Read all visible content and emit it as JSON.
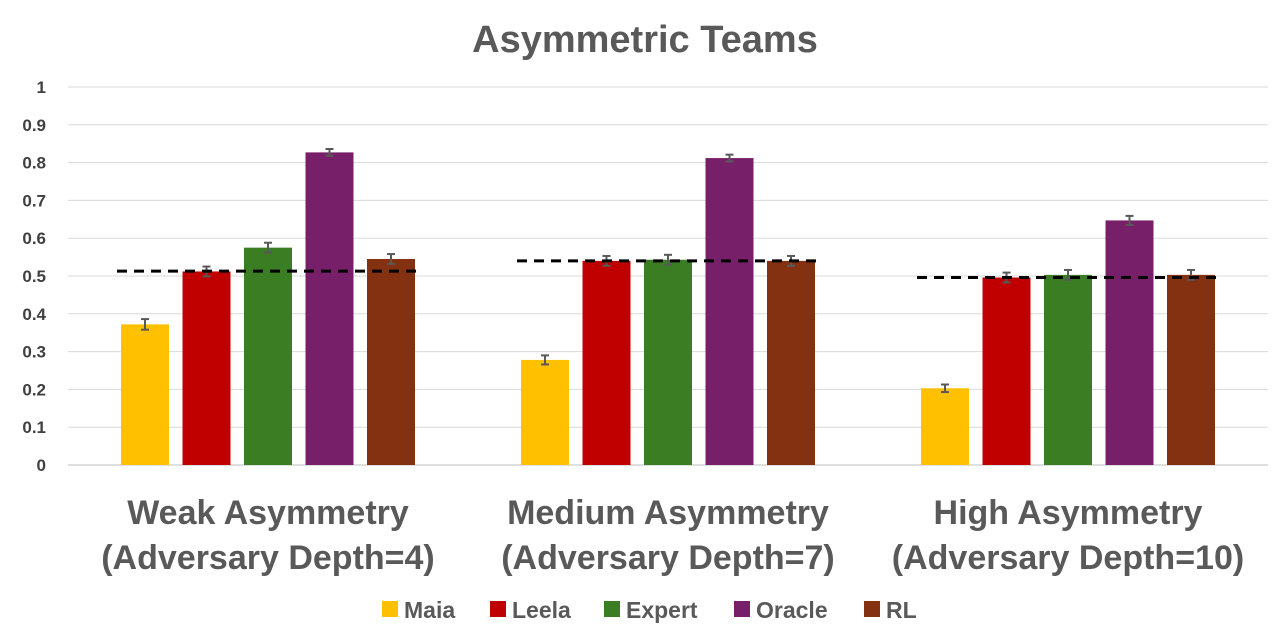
{
  "chart_data": {
    "type": "bar",
    "title": "Asymmetric Teams",
    "ylim": [
      0,
      1
    ],
    "yticks": [
      0,
      0.1,
      0.2,
      0.3,
      0.4,
      0.5,
      0.6,
      0.7,
      0.8,
      0.9,
      1
    ],
    "ytick_labels": [
      "0",
      "0.1",
      "0.2",
      "0.3",
      "0.4",
      "0.5",
      "0.6",
      "0.7",
      "0.8",
      "0.9",
      "1"
    ],
    "grid": true,
    "legend_position": "bottom",
    "categories": [
      {
        "line1": "Weak Asymmetry",
        "line2": "(Adversary Depth=4)"
      },
      {
        "line1": "Medium Asymmetry",
        "line2": "(Adversary Depth=7)"
      },
      {
        "line1": "High Asymmetry",
        "line2": "(Adversary Depth=10)"
      }
    ],
    "series": [
      {
        "name": "Maia",
        "color": "#ffc000",
        "values": [
          0.372,
          0.278,
          0.203
        ],
        "errors": [
          0.014,
          0.012,
          0.01
        ]
      },
      {
        "name": "Leela",
        "color": "#c00000",
        "values": [
          0.512,
          0.54,
          0.496
        ],
        "errors": [
          0.013,
          0.013,
          0.013
        ]
      },
      {
        "name": "Expert",
        "color": "#3a7d22",
        "values": [
          0.575,
          0.543,
          0.503
        ],
        "errors": [
          0.013,
          0.013,
          0.013
        ]
      },
      {
        "name": "Oracle",
        "color": "#772069",
        "values": [
          0.827,
          0.812,
          0.647
        ],
        "errors": [
          0.009,
          0.009,
          0.012
        ]
      },
      {
        "name": "RL",
        "color": "#843111",
        "values": [
          0.545,
          0.54,
          0.503
        ],
        "errors": [
          0.013,
          0.013,
          0.013
        ]
      }
    ],
    "baselines": [
      {
        "value": 0.513,
        "style": "dashed",
        "color": "#000000"
      },
      {
        "value": 0.54,
        "style": "dashed",
        "color": "#000000"
      },
      {
        "value": 0.496,
        "style": "dashed",
        "color": "#000000"
      }
    ]
  }
}
